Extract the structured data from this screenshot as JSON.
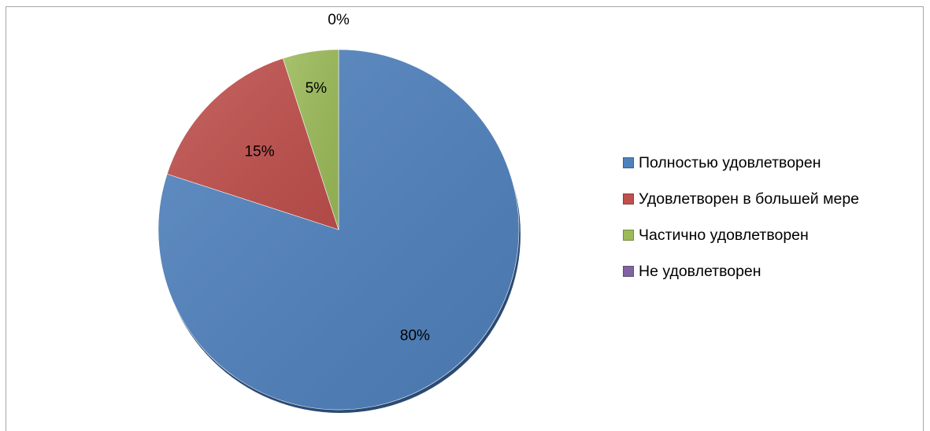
{
  "chart_data": {
    "type": "pie",
    "categories": [
      "Полностью удовлетворен",
      "Удовлетворен в большей мере",
      "Частично удовлетворен",
      "Не удовлетворен"
    ],
    "values": [
      80,
      15,
      5,
      0
    ],
    "data_labels": [
      "80%",
      "15%",
      "5%",
      "0%"
    ],
    "colors": [
      "#4f81bd",
      "#c0504d",
      "#9bbb59",
      "#8064a2"
    ],
    "start_angle": "12 o'clock",
    "direction": "clockwise",
    "legend_position": "right",
    "title": ""
  },
  "legend": {
    "items": [
      {
        "label": "Полностью удовлетворен",
        "color": "#4f81bd"
      },
      {
        "label": "Удовлетворен в большей мере",
        "color": "#c0504d"
      },
      {
        "label": "Частично удовлетворен",
        "color": "#9bbb59"
      },
      {
        "label": "Не удовлетворен",
        "color": "#8064a2"
      }
    ]
  }
}
